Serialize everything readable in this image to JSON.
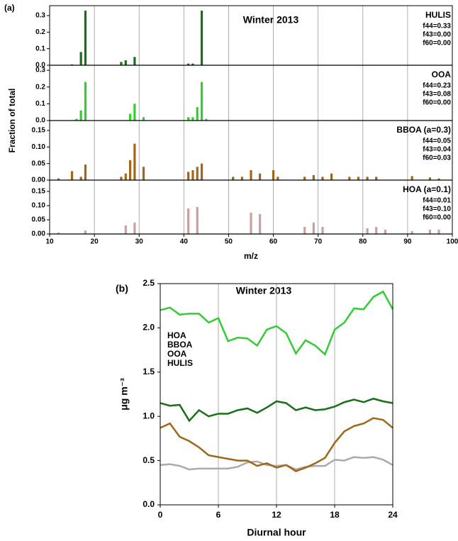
{
  "chart_data": [
    {
      "type": "bar",
      "label": "(a)",
      "title": "Winter 2013",
      "xlabel": "m/z",
      "ylabel": "Fraction of total",
      "xlim": [
        10,
        100
      ],
      "xticks": [
        10,
        20,
        30,
        40,
        50,
        60,
        70,
        80,
        90,
        100
      ],
      "grid": true,
      "subplots": [
        {
          "name": "HULIS",
          "annotations": [
            "f44=0.33",
            "f43=0.00",
            "f60=0.00"
          ],
          "color": "#1a6e1a",
          "ylim": [
            0,
            0.36
          ],
          "yticks": [
            {
              "value": 0,
              "label": "0.0"
            },
            0.1,
            0.2,
            0.3
          ],
          "x": [
            15,
            17,
            18,
            26,
            27,
            29,
            41,
            42,
            44
          ],
          "values": [
            0.005,
            0.08,
            0.33,
            0.02,
            0.03,
            0.05,
            0.01,
            0.01,
            0.33
          ]
        },
        {
          "name": "OOA",
          "annotations": [
            "f44=0.23",
            "f43=0.08",
            "f60=0.00"
          ],
          "color": "#33cc33",
          "ylim": [
            0,
            0.33
          ],
          "yticks": [
            {
              "value": 0,
              "label": "0.0"
            },
            0.1,
            0.2,
            0.3
          ],
          "x": [
            16,
            17,
            18,
            28,
            29,
            31,
            41,
            42,
            43,
            44,
            45
          ],
          "values": [
            0.01,
            0.06,
            0.23,
            0.04,
            0.1,
            0.02,
            0.02,
            0.02,
            0.08,
            0.23,
            0.01
          ]
        },
        {
          "name": "BBOA (a=0.3)",
          "annotations": [
            "f44=0.05",
            "f43=0.04",
            "f60=0.03"
          ],
          "color": "#a0661a",
          "ylim": [
            0,
            0.18
          ],
          "yticks": [
            {
              "value": 0,
              "label": "0.00"
            },
            0.05,
            {
              "value": 0.1,
              "label": "0.10"
            },
            0.15
          ],
          "x": [
            12,
            15,
            17,
            18,
            26,
            27,
            28,
            29,
            31,
            41,
            42,
            43,
            44,
            51,
            53,
            55,
            57,
            60,
            61,
            67,
            69,
            71,
            73,
            77,
            79,
            81,
            83,
            91,
            95,
            97
          ],
          "values": [
            0.005,
            0.027,
            0.01,
            0.047,
            0.01,
            0.02,
            0.06,
            0.11,
            0.04,
            0.025,
            0.03,
            0.04,
            0.05,
            0.01,
            0.01,
            0.03,
            0.02,
            0.03,
            0.01,
            0.01,
            0.015,
            0.01,
            0.02,
            0.01,
            0.01,
            0.01,
            0.01,
            0.012,
            0.008,
            0.005
          ]
        },
        {
          "name": "HOA (a=0.1)",
          "annotations": [
            "f44=0.01",
            "f43=0.10",
            "f60=0.00"
          ],
          "color": "#c8a0a0",
          "ylim": [
            0,
            0.19
          ],
          "yticks": [
            {
              "value": 0,
              "label": "0.00"
            },
            0.05,
            {
              "value": 0.1,
              "label": "0.10"
            },
            0.15
          ],
          "x": [
            12,
            18,
            27,
            29,
            41,
            43,
            55,
            57,
            67,
            69,
            71,
            81,
            83,
            85,
            91,
            95,
            97
          ],
          "values": [
            0.005,
            0.012,
            0.03,
            0.04,
            0.09,
            0.095,
            0.075,
            0.07,
            0.025,
            0.04,
            0.025,
            0.02,
            0.025,
            0.015,
            0.01,
            0.015,
            0.015
          ]
        }
      ]
    },
    {
      "type": "line",
      "label": "(b)",
      "title": "Winter 2013",
      "xlabel": "Diurnal hour",
      "ylabel": "μg m⁻³",
      "x": [
        0,
        1,
        2,
        3,
        4,
        5,
        6,
        7,
        8,
        9,
        10,
        11,
        12,
        13,
        14,
        15,
        16,
        17,
        18,
        19,
        20,
        21,
        22,
        23,
        24
      ],
      "xlim": [
        0,
        24
      ],
      "xticks": [
        0,
        6,
        12,
        18,
        24
      ],
      "ylim": [
        0,
        2.5
      ],
      "yticks": [
        {
          "value": 0,
          "label": "0.0"
        },
        0.5,
        {
          "value": 1,
          "label": "1.0"
        },
        1.5,
        {
          "value": 2,
          "label": "2.0"
        },
        2.5
      ],
      "grid": true,
      "series": [
        {
          "name": "HOA",
          "color": "#aaaaaa",
          "values": [
            0.45,
            0.46,
            0.44,
            0.4,
            0.41,
            0.41,
            0.41,
            0.41,
            0.43,
            0.48,
            0.49,
            0.45,
            0.44,
            0.45,
            0.4,
            0.43,
            0.44,
            0.44,
            0.51,
            0.5,
            0.54,
            0.53,
            0.54,
            0.51,
            0.45
          ]
        },
        {
          "name": "BBOA",
          "color": "#a0661a",
          "values": [
            0.87,
            0.92,
            0.77,
            0.72,
            0.65,
            0.56,
            0.54,
            0.52,
            0.5,
            0.5,
            0.44,
            0.47,
            0.42,
            0.45,
            0.38,
            0.42,
            0.47,
            0.53,
            0.7,
            0.83,
            0.89,
            0.92,
            0.98,
            0.96,
            0.87
          ]
        },
        {
          "name": "OOA",
          "color": "#33cc33",
          "values": [
            2.2,
            2.23,
            2.15,
            2.16,
            2.16,
            2.06,
            2.11,
            1.85,
            1.89,
            1.88,
            1.8,
            1.98,
            2.02,
            1.94,
            1.71,
            1.86,
            1.8,
            1.7,
            1.98,
            2.06,
            2.22,
            2.21,
            2.35,
            2.41,
            2.21
          ]
        },
        {
          "name": "HULIS",
          "color": "#1a6e1a",
          "values": [
            1.15,
            1.12,
            1.13,
            0.95,
            1.07,
            1.0,
            1.03,
            1.03,
            1.07,
            1.09,
            1.04,
            1.1,
            1.17,
            1.15,
            1.07,
            1.1,
            1.07,
            1.08,
            1.11,
            1.16,
            1.19,
            1.16,
            1.2,
            1.17,
            1.15
          ]
        }
      ]
    }
  ]
}
